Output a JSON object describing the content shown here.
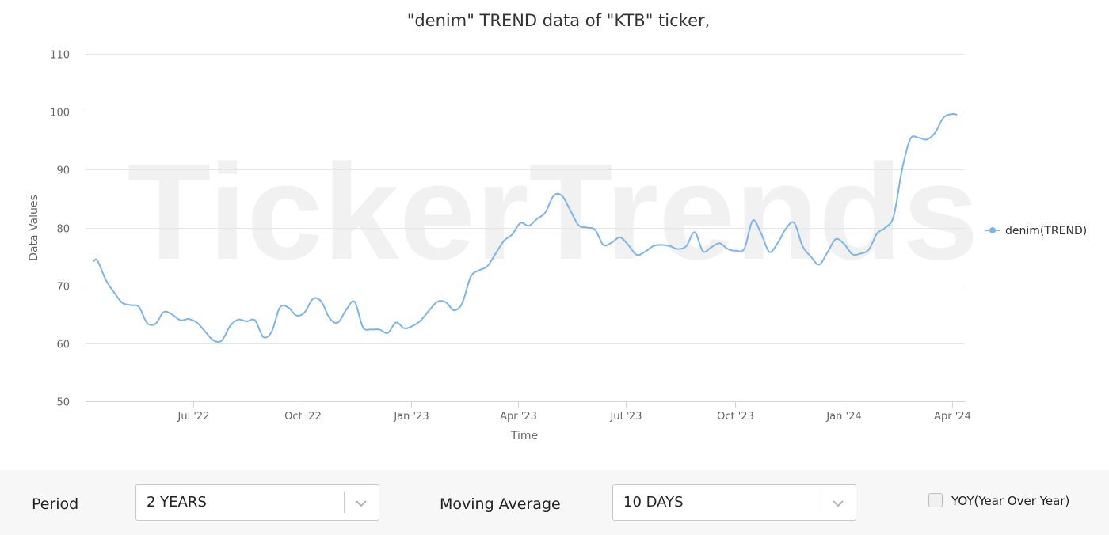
{
  "chart_data": {
    "type": "line",
    "title": "\"denim\" TREND data of \"KTB\" ticker,",
    "xlabel": "Time",
    "ylabel": "Data Values",
    "ylim": [
      50,
      110
    ],
    "yticks": [
      50,
      60,
      70,
      80,
      90,
      100,
      110
    ],
    "xlim": [
      "2022-04-01",
      "2024-04-12"
    ],
    "xticks": [
      {
        "date": "2022-07-01",
        "label": "Jul '22"
      },
      {
        "date": "2022-10-01",
        "label": "Oct '22"
      },
      {
        "date": "2023-01-01",
        "label": "Jan '23"
      },
      {
        "date": "2023-04-01",
        "label": "Apr '23"
      },
      {
        "date": "2023-07-01",
        "label": "Jul '23"
      },
      {
        "date": "2023-10-01",
        "label": "Oct '23"
      },
      {
        "date": "2024-01-01",
        "label": "Jan '24"
      },
      {
        "date": "2024-04-01",
        "label": "Apr '24"
      }
    ],
    "grid": true,
    "legend_position": "right",
    "watermark": "TickerTrends",
    "series": [
      {
        "name": "denim(TREND)",
        "color": "#7cb5ec",
        "points": [
          [
            "2022-04-08",
            74.2
          ],
          [
            "2022-04-11",
            74.3
          ],
          [
            "2022-04-18",
            71.0
          ],
          [
            "2022-04-25",
            68.8
          ],
          [
            "2022-05-02",
            67.0
          ],
          [
            "2022-05-09",
            66.6
          ],
          [
            "2022-05-16",
            66.3
          ],
          [
            "2022-05-23",
            63.5
          ],
          [
            "2022-05-30",
            63.4
          ],
          [
            "2022-06-06",
            65.4
          ],
          [
            "2022-06-13",
            65.0
          ],
          [
            "2022-06-20",
            64.0
          ],
          [
            "2022-06-27",
            64.2
          ],
          [
            "2022-07-04",
            63.6
          ],
          [
            "2022-07-11",
            62.0
          ],
          [
            "2022-07-18",
            60.5
          ],
          [
            "2022-07-25",
            60.5
          ],
          [
            "2022-08-01",
            63.0
          ],
          [
            "2022-08-08",
            64.1
          ],
          [
            "2022-08-15",
            63.8
          ],
          [
            "2022-08-22",
            64.0
          ],
          [
            "2022-08-29",
            61.1
          ],
          [
            "2022-09-05",
            62.0
          ],
          [
            "2022-09-12",
            66.2
          ],
          [
            "2022-09-19",
            66.2
          ],
          [
            "2022-09-26",
            64.8
          ],
          [
            "2022-10-03",
            65.4
          ],
          [
            "2022-10-10",
            67.7
          ],
          [
            "2022-10-17",
            67.2
          ],
          [
            "2022-10-24",
            64.3
          ],
          [
            "2022-10-31",
            63.6
          ],
          [
            "2022-11-07",
            65.8
          ],
          [
            "2022-11-14",
            67.2
          ],
          [
            "2022-11-21",
            62.8
          ],
          [
            "2022-11-28",
            62.4
          ],
          [
            "2022-12-05",
            62.4
          ],
          [
            "2022-12-12",
            61.8
          ],
          [
            "2022-12-19",
            63.6
          ],
          [
            "2022-12-26",
            62.6
          ],
          [
            "2023-01-02",
            63.0
          ],
          [
            "2023-01-09",
            64.0
          ],
          [
            "2023-01-16",
            65.7
          ],
          [
            "2023-01-23",
            67.2
          ],
          [
            "2023-01-30",
            67.1
          ],
          [
            "2023-02-06",
            65.7
          ],
          [
            "2023-02-13",
            67.0
          ],
          [
            "2023-02-20",
            71.5
          ],
          [
            "2023-02-27",
            72.6
          ],
          [
            "2023-03-06",
            73.3
          ],
          [
            "2023-03-13",
            75.5
          ],
          [
            "2023-03-20",
            77.7
          ],
          [
            "2023-03-27",
            78.8
          ],
          [
            "2023-04-03",
            80.8
          ],
          [
            "2023-04-10",
            80.3
          ],
          [
            "2023-04-17",
            81.5
          ],
          [
            "2023-04-24",
            82.6
          ],
          [
            "2023-05-01",
            85.5
          ],
          [
            "2023-05-08",
            85.5
          ],
          [
            "2023-05-15",
            83.0
          ],
          [
            "2023-05-22",
            80.4
          ],
          [
            "2023-05-29",
            80.0
          ],
          [
            "2023-06-05",
            79.6
          ],
          [
            "2023-06-12",
            77.0
          ],
          [
            "2023-06-19",
            77.4
          ],
          [
            "2023-06-26",
            78.3
          ],
          [
            "2023-07-03",
            77.0
          ],
          [
            "2023-07-10",
            75.3
          ],
          [
            "2023-07-17",
            75.8
          ],
          [
            "2023-07-24",
            76.8
          ],
          [
            "2023-07-31",
            77.0
          ],
          [
            "2023-08-07",
            76.8
          ],
          [
            "2023-08-14",
            76.3
          ],
          [
            "2023-08-21",
            76.8
          ],
          [
            "2023-08-28",
            79.2
          ],
          [
            "2023-09-04",
            75.9
          ],
          [
            "2023-09-11",
            76.6
          ],
          [
            "2023-09-18",
            77.3
          ],
          [
            "2023-09-25",
            76.3
          ],
          [
            "2023-10-02",
            76.0
          ],
          [
            "2023-10-09",
            76.4
          ],
          [
            "2023-10-16",
            81.2
          ],
          [
            "2023-10-23",
            79.0
          ],
          [
            "2023-10-30",
            75.8
          ],
          [
            "2023-11-06",
            77.3
          ],
          [
            "2023-11-13",
            79.8
          ],
          [
            "2023-11-20",
            80.8
          ],
          [
            "2023-11-27",
            76.8
          ],
          [
            "2023-12-04",
            75.0
          ],
          [
            "2023-12-11",
            73.6
          ],
          [
            "2023-12-18",
            75.7
          ],
          [
            "2023-12-25",
            78.0
          ],
          [
            "2024-01-01",
            77.2
          ],
          [
            "2024-01-08",
            75.4
          ],
          [
            "2024-01-15",
            75.5
          ],
          [
            "2024-01-22",
            76.2
          ],
          [
            "2024-01-29",
            79.0
          ],
          [
            "2024-02-05",
            80.0
          ],
          [
            "2024-02-12",
            82.0
          ],
          [
            "2024-02-19",
            90.0
          ],
          [
            "2024-02-26",
            95.3
          ],
          [
            "2024-03-04",
            95.5
          ],
          [
            "2024-03-11",
            95.2
          ],
          [
            "2024-03-18",
            96.4
          ],
          [
            "2024-03-25",
            99.0
          ],
          [
            "2024-04-01",
            99.6
          ],
          [
            "2024-04-05",
            99.5
          ]
        ]
      }
    ]
  },
  "controls": {
    "period_label": "Period",
    "period_value": "2 YEARS",
    "ma_label": "Moving Average",
    "ma_value": "10 DAYS",
    "yoy_label": "YOY(Year Over Year)",
    "yoy_checked": false
  }
}
